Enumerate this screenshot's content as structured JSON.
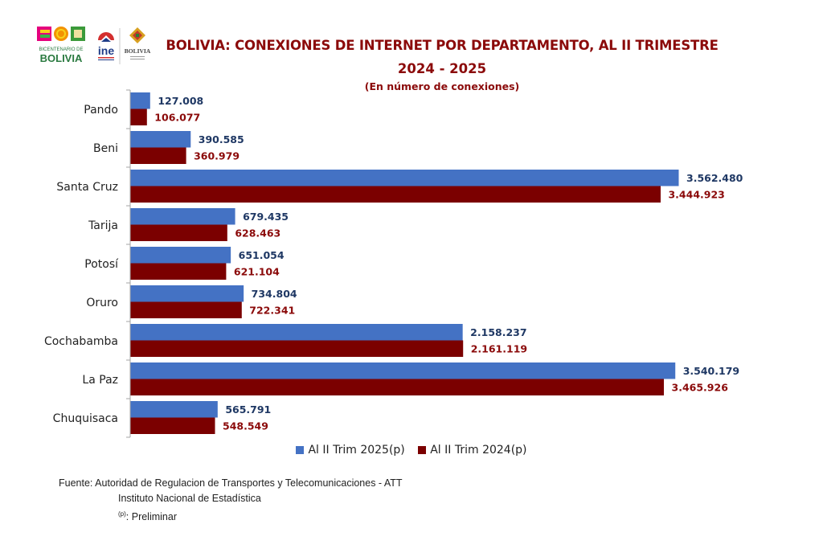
{
  "header": {
    "title_line1": "BOLIVIA: CONEXIONES DE INTERNET POR DEPARTAMENTO, AL II TRIMESTRE",
    "title_line2": "2024 - 2025",
    "subtitle": "(En número de conexiones)",
    "logos": {
      "bicentenario_text1": "BICENTENARIO DE",
      "bicentenario_text2": "BOLIVIA",
      "ine_text": "ine",
      "estado_text": "BOLIVIA"
    }
  },
  "colors": {
    "series_2025": "#4472c4",
    "series_2024": "#7b0000",
    "label_2025": "#1f3864",
    "label_2024": "#8b0a0a",
    "title": "#8b0a0a"
  },
  "chart_data": {
    "type": "bar",
    "orientation": "horizontal",
    "title": "BOLIVIA: CONEXIONES DE INTERNET POR DEPARTAMENTO, AL II TRIMESTRE 2024 - 2025",
    "subtitle": "(En número de conexiones)",
    "xlabel": "",
    "ylabel": "",
    "xlim": [
      0,
      3562480
    ],
    "grid": false,
    "legend_position": "bottom",
    "categories": [
      "Pando",
      "Beni",
      "Santa Cruz",
      "Tarija",
      "Potosí",
      "Oruro",
      "Cochabamba",
      "La Paz",
      "Chuquisaca"
    ],
    "series": [
      {
        "name": "Al II Trim 2025(p)",
        "values": [
          127008,
          390585,
          3562480,
          679435,
          651054,
          734804,
          2158237,
          3540179,
          565791
        ],
        "labels": [
          "127.008",
          "390.585",
          "3.562.480",
          "679.435",
          "651.054",
          "734.804",
          "2.158.237",
          "3.540.179",
          "565.791"
        ]
      },
      {
        "name": "Al II Trim 2024(p)",
        "values": [
          106077,
          360979,
          3444923,
          628463,
          621104,
          722341,
          2161119,
          3465926,
          548549
        ],
        "labels": [
          "106.077",
          "360.979",
          "3.444.923",
          "628.463",
          "621.104",
          "722.341",
          "2.161.119",
          "3.465.926",
          "548.549"
        ]
      }
    ]
  },
  "footer": {
    "source_line1": "Fuente: Autoridad de Regulacion de Transportes y Telecomunicaciones - ATT",
    "source_line2": "Instituto Nacional de Estadística",
    "note_mark": "(p)",
    "note_text": ": Preliminar"
  }
}
